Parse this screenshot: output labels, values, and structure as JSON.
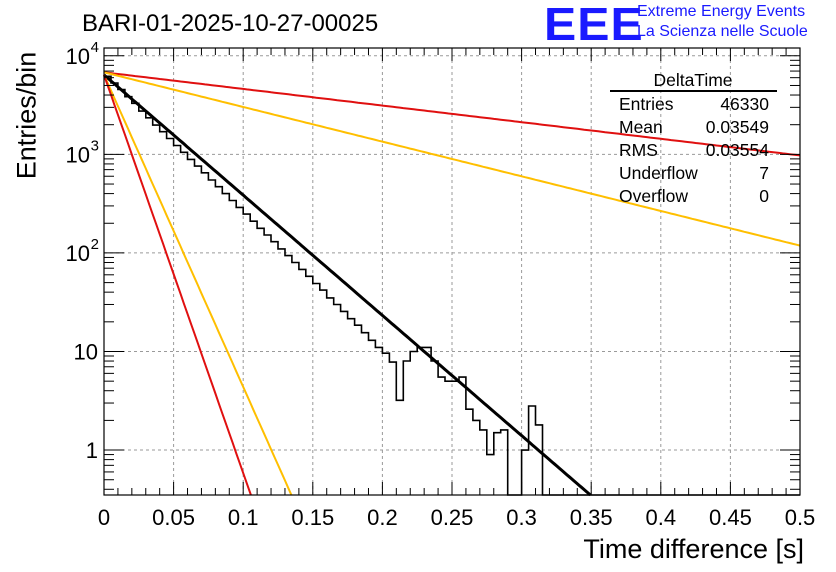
{
  "header": {
    "title": "BARI-01-2025-10-27-00025",
    "logo_text": "EEE",
    "logo_line1": "Extreme Energy Events",
    "logo_line2": "La Scienza nelle Scuole"
  },
  "stats": {
    "title": "DeltaTime",
    "rows": [
      {
        "label": "Entries",
        "value": "46330"
      },
      {
        "label": "Mean",
        "value": "0.03549"
      },
      {
        "label": "RMS",
        "value": "0.03554"
      },
      {
        "label": "Underflow",
        "value": "7"
      },
      {
        "label": "Overflow",
        "value": "0"
      }
    ]
  },
  "chart_data": {
    "type": "line",
    "title": "BARI-01-2025-10-27-00025",
    "xlabel": "Time difference [s]",
    "ylabel": "Entries/bin",
    "xlim": [
      0,
      0.5
    ],
    "ylim_log": [
      0.35,
      12000
    ],
    "y_scale": "log",
    "grid": true,
    "x_ticks": [
      {
        "v": 0,
        "label": "0"
      },
      {
        "v": 0.05,
        "label": "0.05"
      },
      {
        "v": 0.1,
        "label": "0.1"
      },
      {
        "v": 0.15,
        "label": "0.15"
      },
      {
        "v": 0.2,
        "label": "0.2"
      },
      {
        "v": 0.25,
        "label": "0.25"
      },
      {
        "v": 0.3,
        "label": "0.3"
      },
      {
        "v": 0.35,
        "label": "0.35"
      },
      {
        "v": 0.4,
        "label": "0.4"
      },
      {
        "v": 0.45,
        "label": "0.45"
      },
      {
        "v": 0.5,
        "label": "0.5"
      }
    ],
    "y_ticks": [
      {
        "v": 1,
        "base": "1",
        "exp": ""
      },
      {
        "v": 10,
        "base": "10",
        "exp": ""
      },
      {
        "v": 100,
        "base": "10",
        "exp": "2"
      },
      {
        "v": 1000,
        "base": "10",
        "exp": "3"
      },
      {
        "v": 10000,
        "base": "10",
        "exp": "4"
      }
    ],
    "histogram": {
      "name": "DeltaTime",
      "color": "#000000",
      "bin_width": 0.005,
      "values": [
        6200,
        5300,
        4550,
        3850,
        3300,
        2750,
        2350,
        1980,
        1700,
        1450,
        1230,
        1050,
        890,
        760,
        650,
        550,
        470,
        400,
        340,
        290,
        248,
        210,
        178,
        152,
        130,
        110,
        94,
        80,
        68,
        58,
        49,
        42,
        35,
        30,
        25.5,
        21.5,
        18.5,
        15.5,
        13,
        11,
        9.6,
        7.8,
        3.2,
        8,
        10,
        11,
        11,
        8,
        5.5,
        5,
        5,
        5.5,
        2.6,
        2,
        1.6,
        0.9,
        1.5,
        1.6,
        0,
        0,
        1,
        2.8,
        1.8,
        0.3,
        0.15,
        0.1,
        0.1,
        0.1,
        0.1,
        0.1,
        0.1,
        0.1,
        0.1,
        0.1,
        0.1,
        0.1,
        0.1,
        0.1,
        0.1,
        0.1,
        0.1,
        0.1,
        0.1,
        0.1,
        0.1,
        0.1,
        0.1,
        0.1,
        0.1,
        0.1,
        0.1,
        0.1,
        0.1,
        0.1,
        0.1,
        0.1,
        0.1,
        0.1,
        0.1,
        0.1
      ]
    },
    "fits": [
      {
        "name": "fit",
        "color": "#000000",
        "A": 6400,
        "tau": 0.0356,
        "x_end": 0.35
      },
      {
        "name": "slow-red",
        "color": "#e01010",
        "A": 6800,
        "tau": 0.2575,
        "x_end": 0.5
      },
      {
        "name": "slow-orange",
        "color": "#ffbf00",
        "A": 6800,
        "tau": 0.1235,
        "x_end": 0.5
      },
      {
        "name": "fast-orange",
        "color": "#ffbf00",
        "A": 6400,
        "tau": 0.01372,
        "x_end": 0.5
      },
      {
        "name": "fast-red",
        "color": "#e01010",
        "A": 6400,
        "tau": 0.01075,
        "x_end": 0.5
      }
    ]
  }
}
